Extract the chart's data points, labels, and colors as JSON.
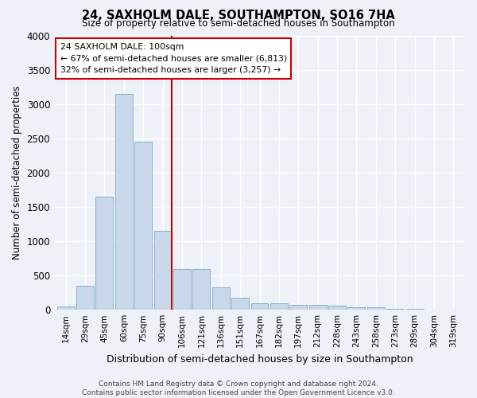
{
  "title": "24, SAXHOLM DALE, SOUTHAMPTON, SO16 7HA",
  "subtitle": "Size of property relative to semi-detached houses in Southampton",
  "xlabel": "Distribution of semi-detached houses by size in Southampton",
  "ylabel": "Number of semi-detached properties",
  "footer_line1": "Contains HM Land Registry data © Crown copyright and database right 2024.",
  "footer_line2": "Contains public sector information licensed under the Open Government Licence v3.0.",
  "bar_color": "#c8d8ea",
  "bar_edge_color": "#7aaac8",
  "property_line_color": "#cc0000",
  "annotation_box_color": "#cc0000",
  "background_color": "#eef2f8",
  "categories": [
    "14sqm",
    "29sqm",
    "45sqm",
    "60sqm",
    "75sqm",
    "90sqm",
    "106sqm",
    "121sqm",
    "136sqm",
    "151sqm",
    "167sqm",
    "182sqm",
    "197sqm",
    "212sqm",
    "228sqm",
    "243sqm",
    "258sqm",
    "273sqm",
    "289sqm",
    "304sqm",
    "319sqm"
  ],
  "values": [
    50,
    350,
    1650,
    3150,
    2450,
    1150,
    600,
    600,
    325,
    175,
    100,
    100,
    75,
    75,
    55,
    35,
    35,
    10,
    10,
    5,
    5
  ],
  "property_bin_index": 5,
  "annotation_line1": "24 SAXHOLM DALE: 100sqm",
  "annotation_line2": "← 67% of semi-detached houses are smaller (6,813)",
  "annotation_line3": "32% of semi-detached houses are larger (3,257) →",
  "ylim": [
    0,
    4000
  ],
  "yticks": [
    0,
    500,
    1000,
    1500,
    2000,
    2500,
    3000,
    3500,
    4000
  ]
}
